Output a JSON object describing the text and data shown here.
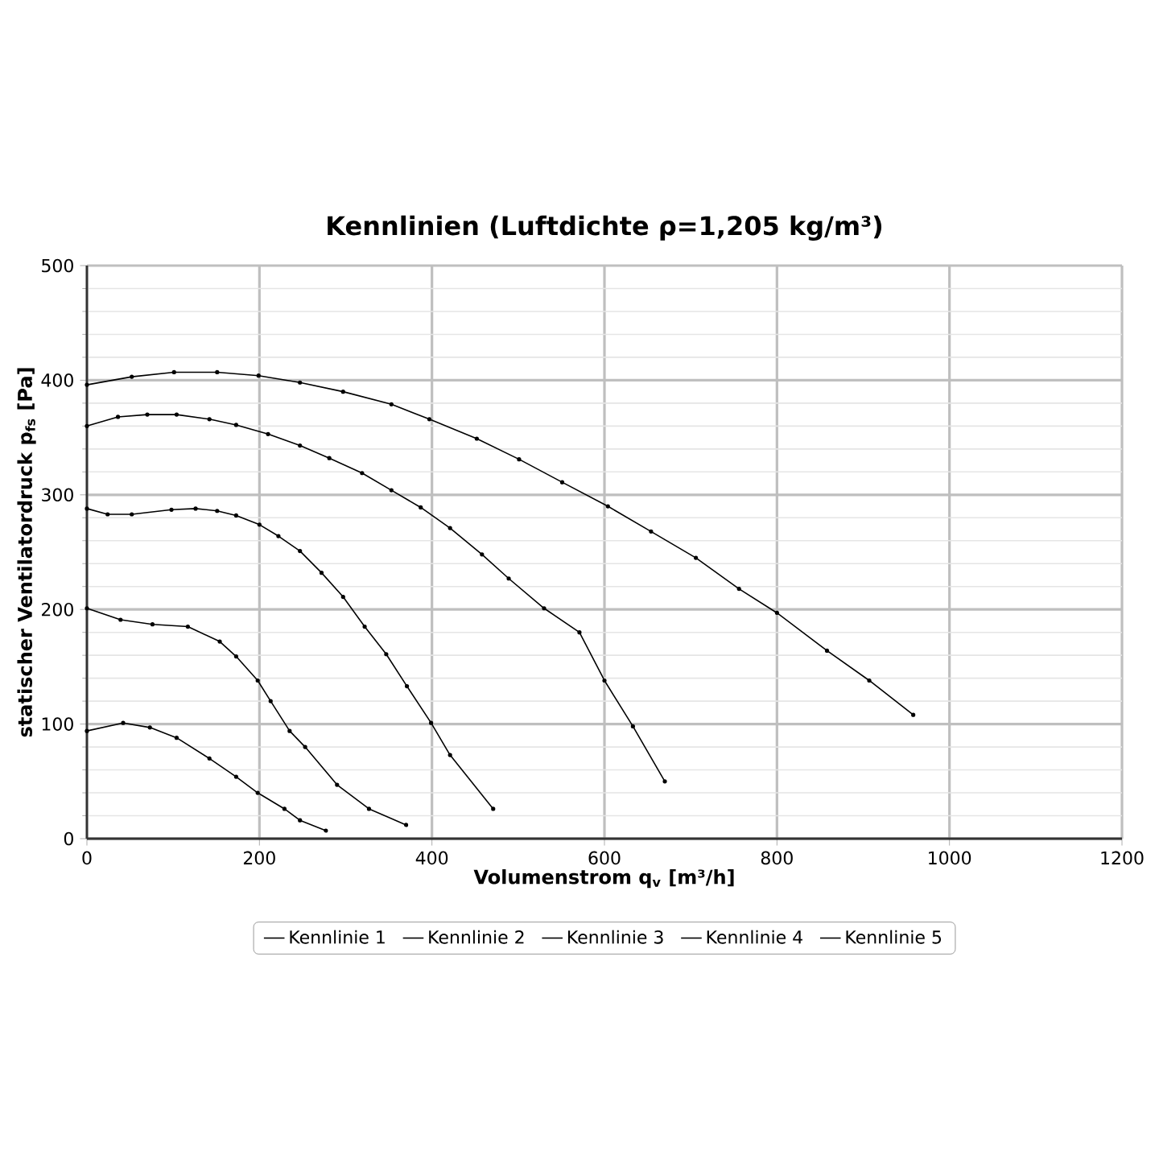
{
  "chart_data": {
    "type": "line",
    "title": "Kennlinien (Luftdichte ρ=1,205 kg/m³)",
    "xlabel": "Volumenstrom q$_{v}$ [m³/h]",
    "ylabel": "statischer Ventilatordruck p$_{fs}$ [Pa]",
    "xlim": [
      0,
      1200
    ],
    "ylim": [
      0,
      500
    ],
    "xticks": [
      0,
      200,
      400,
      600,
      800,
      1000,
      1200
    ],
    "yticks": [
      0,
      100,
      200,
      300,
      400,
      500
    ],
    "grid": true,
    "legend": "bottom",
    "marker": "circle",
    "line_style": "solid",
    "series": [
      {
        "name": "Kennlinie 1",
        "color": "#000000",
        "x": [
          0,
          52,
          101,
          151,
          199,
          247,
          297,
          353,
          397,
          452,
          501,
          551,
          604,
          654,
          706,
          756,
          800,
          858,
          907,
          958
        ],
        "values": [
          396,
          403,
          407,
          407,
          404,
          398,
          390,
          379,
          366,
          349,
          331,
          311,
          290,
          268,
          245,
          218,
          197,
          164,
          138,
          108
        ]
      },
      {
        "name": "Kennlinie 2",
        "color": "#000000",
        "x": [
          0,
          36,
          70,
          104,
          142,
          173,
          210,
          247,
          281,
          319,
          353,
          387,
          421,
          458,
          489,
          530,
          571,
          600,
          633,
          670
        ],
        "values": [
          360,
          368,
          370,
          370,
          366,
          361,
          353,
          343,
          332,
          319,
          304,
          289,
          271,
          248,
          227,
          201,
          180,
          138,
          98,
          50
        ]
      },
      {
        "name": "Kennlinie 3",
        "color": "#000000",
        "x": [
          0,
          24,
          52,
          98,
          126,
          151,
          173,
          200,
          222,
          247,
          272,
          297,
          322,
          347,
          371,
          399,
          421,
          471
        ],
        "values": [
          288,
          283,
          283,
          287,
          288,
          286,
          282,
          274,
          264,
          251,
          232,
          211,
          185,
          161,
          133,
          101,
          73,
          26
        ]
      },
      {
        "name": "Kennlinie 4",
        "color": "#000000",
        "x": [
          0,
          39,
          76,
          117,
          154,
          173,
          198,
          213,
          235,
          253,
          290,
          327,
          370
        ],
        "values": [
          201,
          191,
          187,
          185,
          172,
          159,
          138,
          120,
          94,
          80,
          47,
          26,
          12
        ]
      },
      {
        "name": "Kennlinie 5",
        "color": "#000000",
        "x": [
          0,
          42,
          73,
          104,
          142,
          173,
          198,
          229,
          247,
          277
        ],
        "values": [
          94,
          101,
          97,
          88,
          70,
          54,
          40,
          26,
          16,
          7
        ]
      }
    ]
  }
}
